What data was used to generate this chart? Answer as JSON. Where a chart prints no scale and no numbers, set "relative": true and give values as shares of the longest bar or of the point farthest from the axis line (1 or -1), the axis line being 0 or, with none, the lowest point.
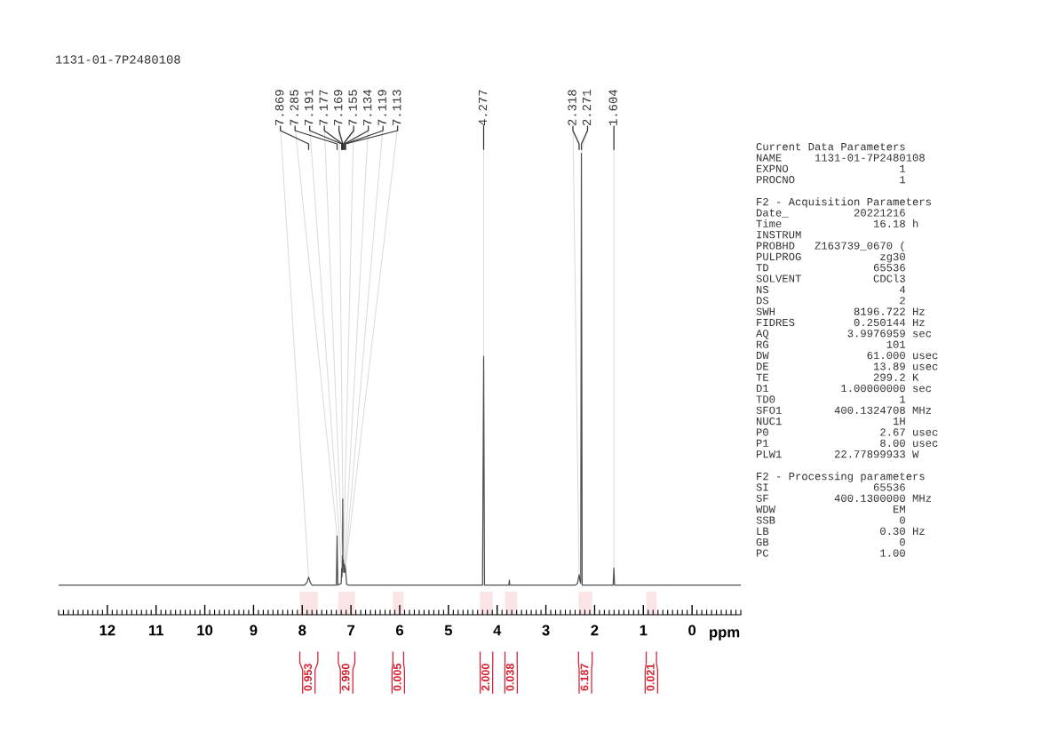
{
  "chart_data": [
    {
      "type": "line",
      "title": "1131-01-7P2480108",
      "xlabel": "ppm",
      "relative": true,
      "xlim": [
        13,
        -1
      ],
      "xticks": [
        12,
        11,
        10,
        9,
        8,
        7,
        6,
        5,
        4,
        3,
        2,
        1,
        0
      ],
      "grid": false,
      "legend": false,
      "marker": "none",
      "line_style": "solid",
      "series": [
        {
          "color": "#505050",
          "x": [
            13.0,
            7.95,
            7.9,
            7.869,
            7.84,
            7.8,
            7.3,
            7.285,
            7.27,
            7.2,
            7.191,
            7.184,
            7.177,
            7.173,
            7.169,
            7.162,
            7.155,
            7.145,
            7.134,
            7.125,
            7.119,
            7.116,
            7.113,
            7.09,
            7.05,
            4.3,
            4.277,
            4.26,
            3.76,
            3.75,
            3.74,
            2.4,
            2.35,
            2.318,
            2.3,
            2.285,
            2.271,
            2.255,
            1.62,
            1.604,
            1.59,
            -1.0
          ],
          "values": [
            0.064,
            0.064,
            0.071,
            0.082,
            0.071,
            0.064,
            0.064,
            0.171,
            0.064,
            0.068,
            0.101,
            0.082,
            0.129,
            0.092,
            0.251,
            0.11,
            0.12,
            0.092,
            0.11,
            0.092,
            0.106,
            0.092,
            0.101,
            0.066,
            0.064,
            0.064,
            0.56,
            0.064,
            0.064,
            0.075,
            0.064,
            0.064,
            0.068,
            0.087,
            0.073,
            0.068,
            1.0,
            0.064,
            0.064,
            0.101,
            0.064,
            0.064
          ]
        }
      ],
      "bands": [
        {
          "axis": "x",
          "from": 8.05,
          "to": 7.68,
          "label": "0.953",
          "color": "#d42030"
        },
        {
          "axis": "x",
          "from": 7.26,
          "to": 6.92,
          "label": "2.990",
          "color": "#d42030"
        },
        {
          "axis": "x",
          "from": 6.14,
          "to": 5.92,
          "label": "0.005",
          "color": "#d42030"
        },
        {
          "axis": "x",
          "from": 4.35,
          "to": 4.09,
          "label": "2.000",
          "color": "#d42030"
        },
        {
          "axis": "x",
          "from": 3.84,
          "to": 3.59,
          "label": "0.038",
          "color": "#d42030"
        },
        {
          "axis": "x",
          "from": 2.33,
          "to": 2.05,
          "label": "6.187",
          "color": "#d42030"
        },
        {
          "axis": "x",
          "from": 0.94,
          "to": 0.73,
          "label": "0.021",
          "color": "#d42030"
        }
      ],
      "annotations": [
        {
          "text": "7.869",
          "x": 7.869,
          "y": 0.082
        },
        {
          "text": "7.285",
          "x": 7.285,
          "y": 0.171
        },
        {
          "text": "7.191",
          "x": 7.191,
          "y": 0.101
        },
        {
          "text": "7.177",
          "x": 7.177,
          "y": 0.129
        },
        {
          "text": "7.169",
          "x": 7.169,
          "y": 0.251
        },
        {
          "text": "7.155",
          "x": 7.155,
          "y": 0.12
        },
        {
          "text": "7.134",
          "x": 7.134,
          "y": 0.11
        },
        {
          "text": "7.119",
          "x": 7.119,
          "y": 0.106
        },
        {
          "text": "7.113",
          "x": 7.113,
          "y": 0.101
        },
        {
          "text": "4.277",
          "x": 4.277,
          "y": 0.56
        },
        {
          "text": "2.318",
          "x": 2.318,
          "y": 0.087
        },
        {
          "text": "2.271",
          "x": 2.271,
          "y": 1.0
        },
        {
          "text": "1.604",
          "x": 1.604,
          "y": 0.101
        }
      ]
    },
    {
      "type": "other",
      "title": "Current Data Parameters",
      "annotations": [
        "NAME     1131-01-7P2480108",
        "EXPNO                 1",
        "PROCNO                1"
      ]
    },
    {
      "type": "other",
      "title": "F2 - Acquisition Parameters",
      "annotations": [
        "Date_          20221216",
        "Time              16.18 h",
        "INSTRUM",
        "PROBHD   Z163739_0670 (",
        "PULPROG            zg30",
        "TD                65536",
        "SOLVENT           CDCl3",
        "NS                    4",
        "DS                    2",
        "SWH            8196.722 Hz",
        "FIDRES         0.250144 Hz",
        "AQ            3.9976959 sec",
        "RG                  101",
        "DW               61.000 usec",
        "DE                13.89 usec",
        "TE                299.2 K",
        "D1           1.00000000 sec",
        "TD0                   1",
        "SFO1        400.1324708 MHz",
        "NUC1                 1H",
        "P0                 2.67 usec",
        "P1                 8.00 usec",
        "PLW1        22.77899933 W"
      ]
    },
    {
      "type": "other",
      "title": "F2 - Processing parameters",
      "annotations": [
        "SI                65536",
        "SF          400.1300000 MHz",
        "WDW                  EM",
        "SSB                   0",
        "LB                 0.30 Hz",
        "GB                    0",
        "PC                 1.00"
      ]
    }
  ]
}
